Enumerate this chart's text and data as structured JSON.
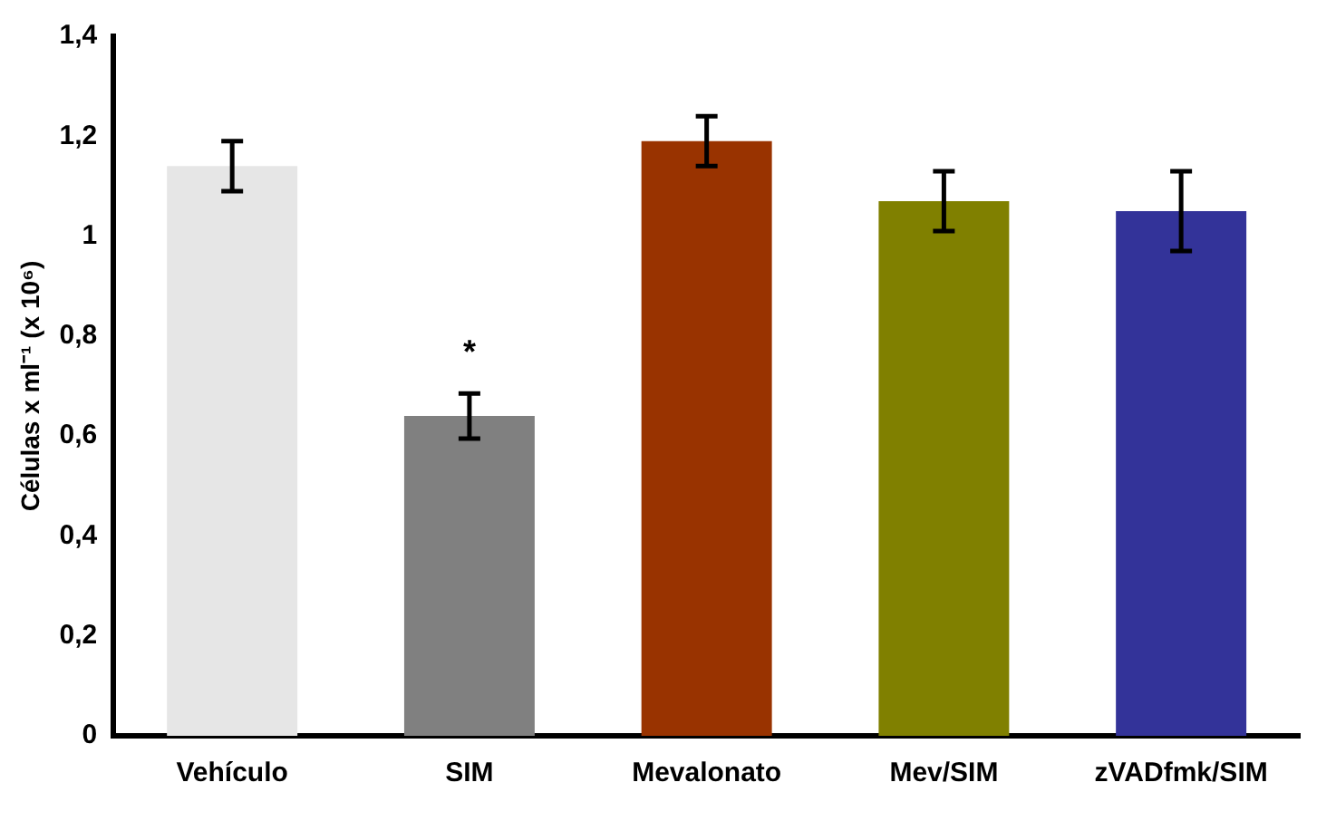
{
  "chart_data": {
    "type": "bar",
    "ylabel": "Células x ml⁻¹ (x 10⁶)",
    "categories": [
      "Vehículo",
      "SIM",
      "Mevalonato",
      "Mev/SIM",
      "zVADfmk/SIM"
    ],
    "values": [
      1.14,
      0.64,
      1.19,
      1.07,
      1.05
    ],
    "errors": [
      0.05,
      0.045,
      0.05,
      0.06,
      0.08
    ],
    "colors": [
      "#e6e6e6",
      "#808080",
      "#993300",
      "#808000",
      "#333399"
    ],
    "ylim": [
      0,
      1.4
    ],
    "yticks": [
      0,
      {
        "value": 0.2,
        "label": "0,2"
      },
      {
        "value": 0.4,
        "label": "0,4"
      },
      {
        "value": 0.6,
        "label": "0,6"
      },
      {
        "value": 0.8,
        "label": "0,8"
      },
      1,
      {
        "value": 1.2,
        "label": "1,2"
      },
      {
        "value": 1.4,
        "label": "1,4"
      }
    ],
    "value_labels": [
      null,
      "*",
      null,
      null,
      null
    ],
    "grid": false,
    "legend": false
  }
}
